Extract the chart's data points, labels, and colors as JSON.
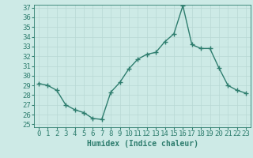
{
  "x": [
    0,
    1,
    2,
    3,
    4,
    5,
    6,
    7,
    8,
    9,
    10,
    11,
    12,
    13,
    14,
    15,
    16,
    17,
    18,
    19,
    20,
    21,
    22,
    23
  ],
  "y": [
    29.2,
    29.0,
    28.5,
    27.0,
    26.5,
    26.2,
    25.6,
    25.5,
    28.3,
    29.3,
    30.7,
    31.7,
    32.2,
    32.4,
    33.5,
    34.3,
    37.2,
    33.2,
    32.8,
    32.8,
    30.8,
    29.0,
    28.5,
    28.2
  ],
  "line_color": "#2e7d6e",
  "marker": "+",
  "bg_color": "#cdeae6",
  "grid_color": "#b8d8d4",
  "xlabel": "Humidex (Indice chaleur)",
  "ylim_min": 25,
  "ylim_max": 37,
  "xlim_min": -0.5,
  "xlim_max": 23.5,
  "yticks": [
    25,
    26,
    27,
    28,
    29,
    30,
    31,
    32,
    33,
    34,
    35,
    36,
    37
  ],
  "xticks": [
    0,
    1,
    2,
    3,
    4,
    5,
    6,
    7,
    8,
    9,
    10,
    11,
    12,
    13,
    14,
    15,
    16,
    17,
    18,
    19,
    20,
    21,
    22,
    23
  ],
  "xlabel_fontsize": 7,
  "tick_fontsize": 6.5,
  "tick_color": "#2e7d6e",
  "marker_size": 4,
  "linewidth": 1.0
}
